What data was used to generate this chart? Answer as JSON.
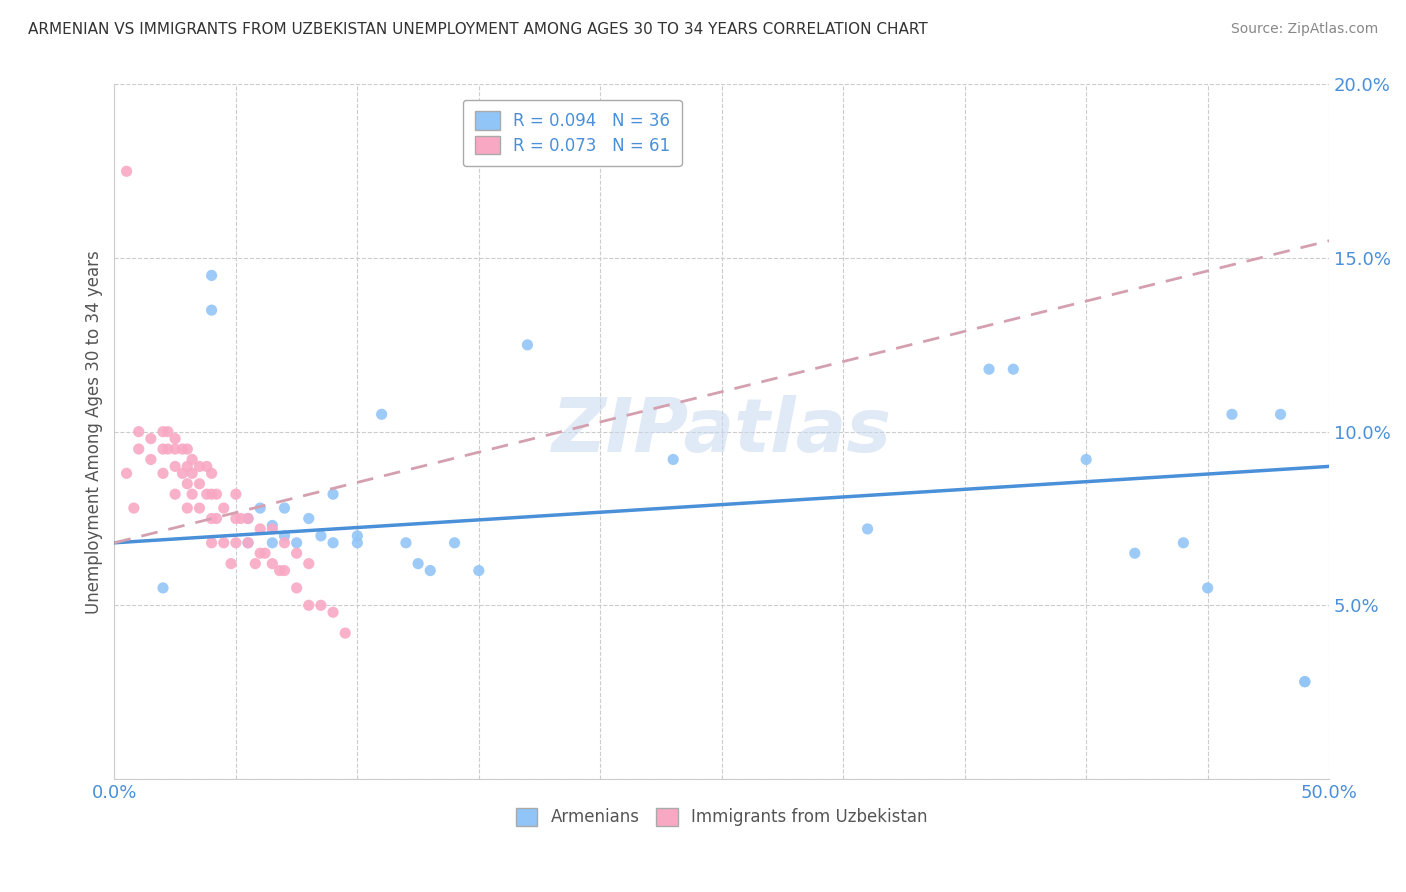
{
  "title": "ARMENIAN VS IMMIGRANTS FROM UZBEKISTAN UNEMPLOYMENT AMONG AGES 30 TO 34 YEARS CORRELATION CHART",
  "source": "Source: ZipAtlas.com",
  "ylabel": "Unemployment Among Ages 30 to 34 years",
  "xlim": [
    0,
    0.5
  ],
  "ylim": [
    0,
    0.2
  ],
  "xticks": [
    0.0,
    0.05,
    0.1,
    0.15,
    0.2,
    0.25,
    0.3,
    0.35,
    0.4,
    0.45,
    0.5
  ],
  "yticks": [
    0.0,
    0.05,
    0.1,
    0.15,
    0.2
  ],
  "armenian_R": 0.094,
  "armenian_N": 36,
  "uzbekistan_R": 0.073,
  "uzbekistan_N": 61,
  "armenian_color": "#92c5f7",
  "uzbekistan_color": "#f9a8c4",
  "armenian_line_color": "#4a90d9",
  "uzbekistan_line_color": "#d4a0b0",
  "legend_label_armenian": "Armenians",
  "legend_label_uzbekistan": "Immigrants from Uzbekistan",
  "background_color": "#ffffff",
  "watermark": "ZIPatlas",
  "armenian_x": [
    0.02,
    0.04,
    0.04,
    0.055,
    0.055,
    0.06,
    0.065,
    0.065,
    0.07,
    0.07,
    0.075,
    0.08,
    0.085,
    0.09,
    0.09,
    0.1,
    0.1,
    0.11,
    0.12,
    0.125,
    0.13,
    0.14,
    0.15,
    0.17,
    0.23,
    0.31,
    0.36,
    0.37,
    0.4,
    0.42,
    0.44,
    0.45,
    0.46,
    0.48,
    0.49,
    0.49
  ],
  "armenian_y": [
    0.055,
    0.145,
    0.135,
    0.075,
    0.068,
    0.078,
    0.073,
    0.068,
    0.078,
    0.07,
    0.068,
    0.075,
    0.07,
    0.082,
    0.068,
    0.068,
    0.07,
    0.105,
    0.068,
    0.062,
    0.06,
    0.068,
    0.06,
    0.125,
    0.092,
    0.072,
    0.118,
    0.118,
    0.092,
    0.065,
    0.068,
    0.055,
    0.105,
    0.105,
    0.028,
    0.028
  ],
  "uzbekistan_x": [
    0.005,
    0.005,
    0.008,
    0.01,
    0.01,
    0.015,
    0.015,
    0.02,
    0.02,
    0.02,
    0.022,
    0.022,
    0.025,
    0.025,
    0.025,
    0.025,
    0.028,
    0.028,
    0.03,
    0.03,
    0.03,
    0.03,
    0.032,
    0.032,
    0.032,
    0.035,
    0.035,
    0.035,
    0.038,
    0.038,
    0.04,
    0.04,
    0.04,
    0.04,
    0.042,
    0.042,
    0.045,
    0.045,
    0.048,
    0.05,
    0.05,
    0.05,
    0.052,
    0.055,
    0.055,
    0.058,
    0.06,
    0.06,
    0.062,
    0.065,
    0.065,
    0.068,
    0.07,
    0.07,
    0.075,
    0.075,
    0.08,
    0.08,
    0.085,
    0.09,
    0.095
  ],
  "uzbekistan_y": [
    0.175,
    0.088,
    0.078,
    0.1,
    0.095,
    0.098,
    0.092,
    0.1,
    0.095,
    0.088,
    0.1,
    0.095,
    0.098,
    0.095,
    0.09,
    0.082,
    0.095,
    0.088,
    0.095,
    0.09,
    0.085,
    0.078,
    0.092,
    0.088,
    0.082,
    0.09,
    0.085,
    0.078,
    0.09,
    0.082,
    0.088,
    0.082,
    0.075,
    0.068,
    0.082,
    0.075,
    0.078,
    0.068,
    0.062,
    0.082,
    0.075,
    0.068,
    0.075,
    0.075,
    0.068,
    0.062,
    0.072,
    0.065,
    0.065,
    0.072,
    0.062,
    0.06,
    0.068,
    0.06,
    0.065,
    0.055,
    0.062,
    0.05,
    0.05,
    0.048,
    0.042
  ],
  "arm_trend_x0": 0.0,
  "arm_trend_y0": 0.068,
  "arm_trend_x1": 0.5,
  "arm_trend_y1": 0.09,
  "uzb_trend_x0": 0.0,
  "uzb_trend_y0": 0.068,
  "uzb_trend_x1": 0.5,
  "uzb_trend_y1": 0.155
}
